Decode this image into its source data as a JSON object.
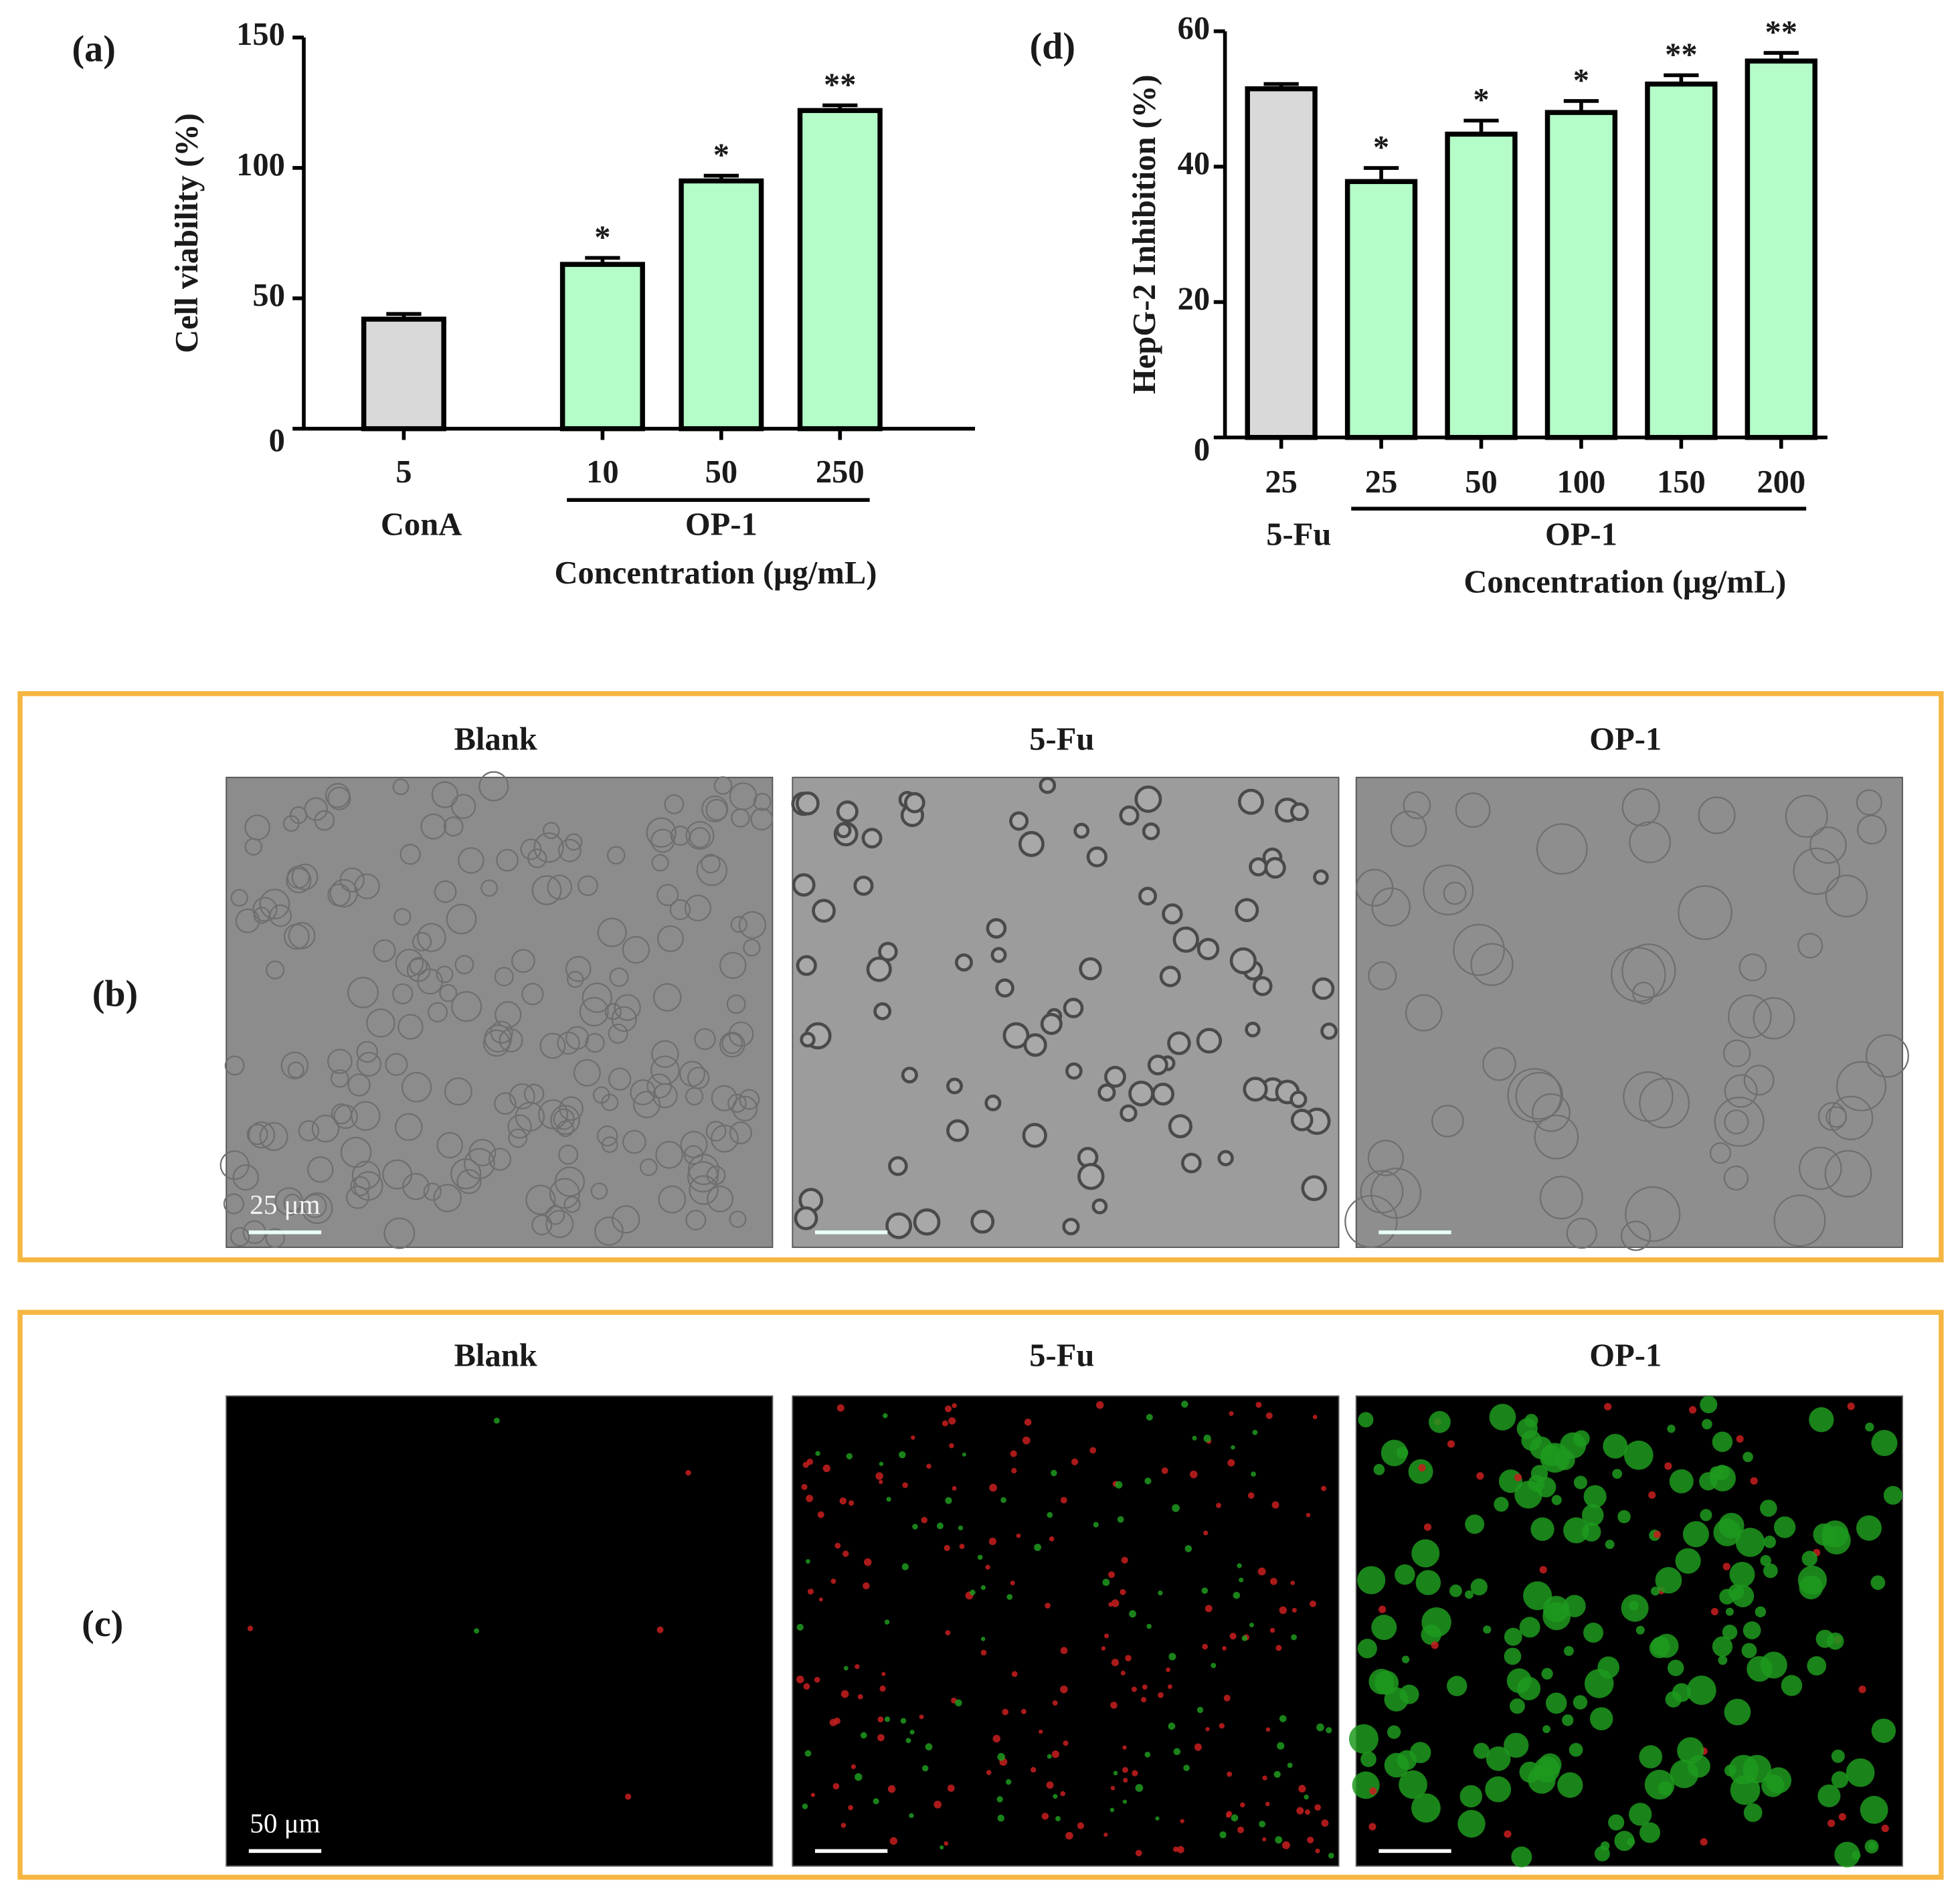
{
  "chart_data": [
    {
      "type": "bar",
      "panel_label": "(a)",
      "y_label": "Cell viability (%)",
      "x_label": "Concentration (μg/mL)",
      "ylim": [
        0,
        150
      ],
      "yticks": [
        0,
        50,
        100,
        150
      ],
      "groups": [
        {
          "name": "ConA",
          "color": "#d9d9d9",
          "categories": [
            "5"
          ],
          "values": [
            42
          ],
          "errors": [
            2
          ],
          "significance": [
            null
          ]
        },
        {
          "name": "OP-1",
          "color": "#b4fcc8",
          "categories": [
            "10",
            "50",
            "250"
          ],
          "values": [
            63,
            95,
            122
          ],
          "errors": [
            2.5,
            2,
            2
          ],
          "significance": [
            "*",
            "*",
            "**"
          ]
        }
      ]
    },
    {
      "type": "bar",
      "panel_label": "(d)",
      "y_label": "HepG-2 Inhibition (%)",
      "x_label": "Concentration (μg/mL)",
      "ylim": [
        0,
        60
      ],
      "yticks": [
        0,
        20,
        40,
        60
      ],
      "groups": [
        {
          "name": "5-Fu",
          "color": "#d9d9d9",
          "categories": [
            "25"
          ],
          "values": [
            51.5
          ],
          "errors": [
            0.7
          ],
          "significance": [
            null
          ]
        },
        {
          "name": "OP-1",
          "color": "#b4fcc8",
          "categories": [
            "25",
            "50",
            "100",
            "150",
            "200"
          ],
          "values": [
            37.8,
            44.8,
            48,
            52.2,
            55.6
          ],
          "errors": [
            2,
            2,
            1.7,
            1.3,
            1.2
          ],
          "significance": [
            "*",
            "*",
            "*",
            "**",
            "**"
          ]
        }
      ]
    }
  ],
  "image_panels": [
    {
      "label": "(b)",
      "kind": "brightfield",
      "images": [
        {
          "title": "Blank",
          "scale_bar": "25 μm"
        },
        {
          "title": "5-Fu"
        },
        {
          "title": "OP-1"
        }
      ]
    },
    {
      "label": "(c)",
      "kind": "fluorescence",
      "images": [
        {
          "title": "Blank",
          "scale_bar": "50 μm"
        },
        {
          "title": "5-Fu"
        },
        {
          "title": "OP-1"
        }
      ]
    }
  ]
}
